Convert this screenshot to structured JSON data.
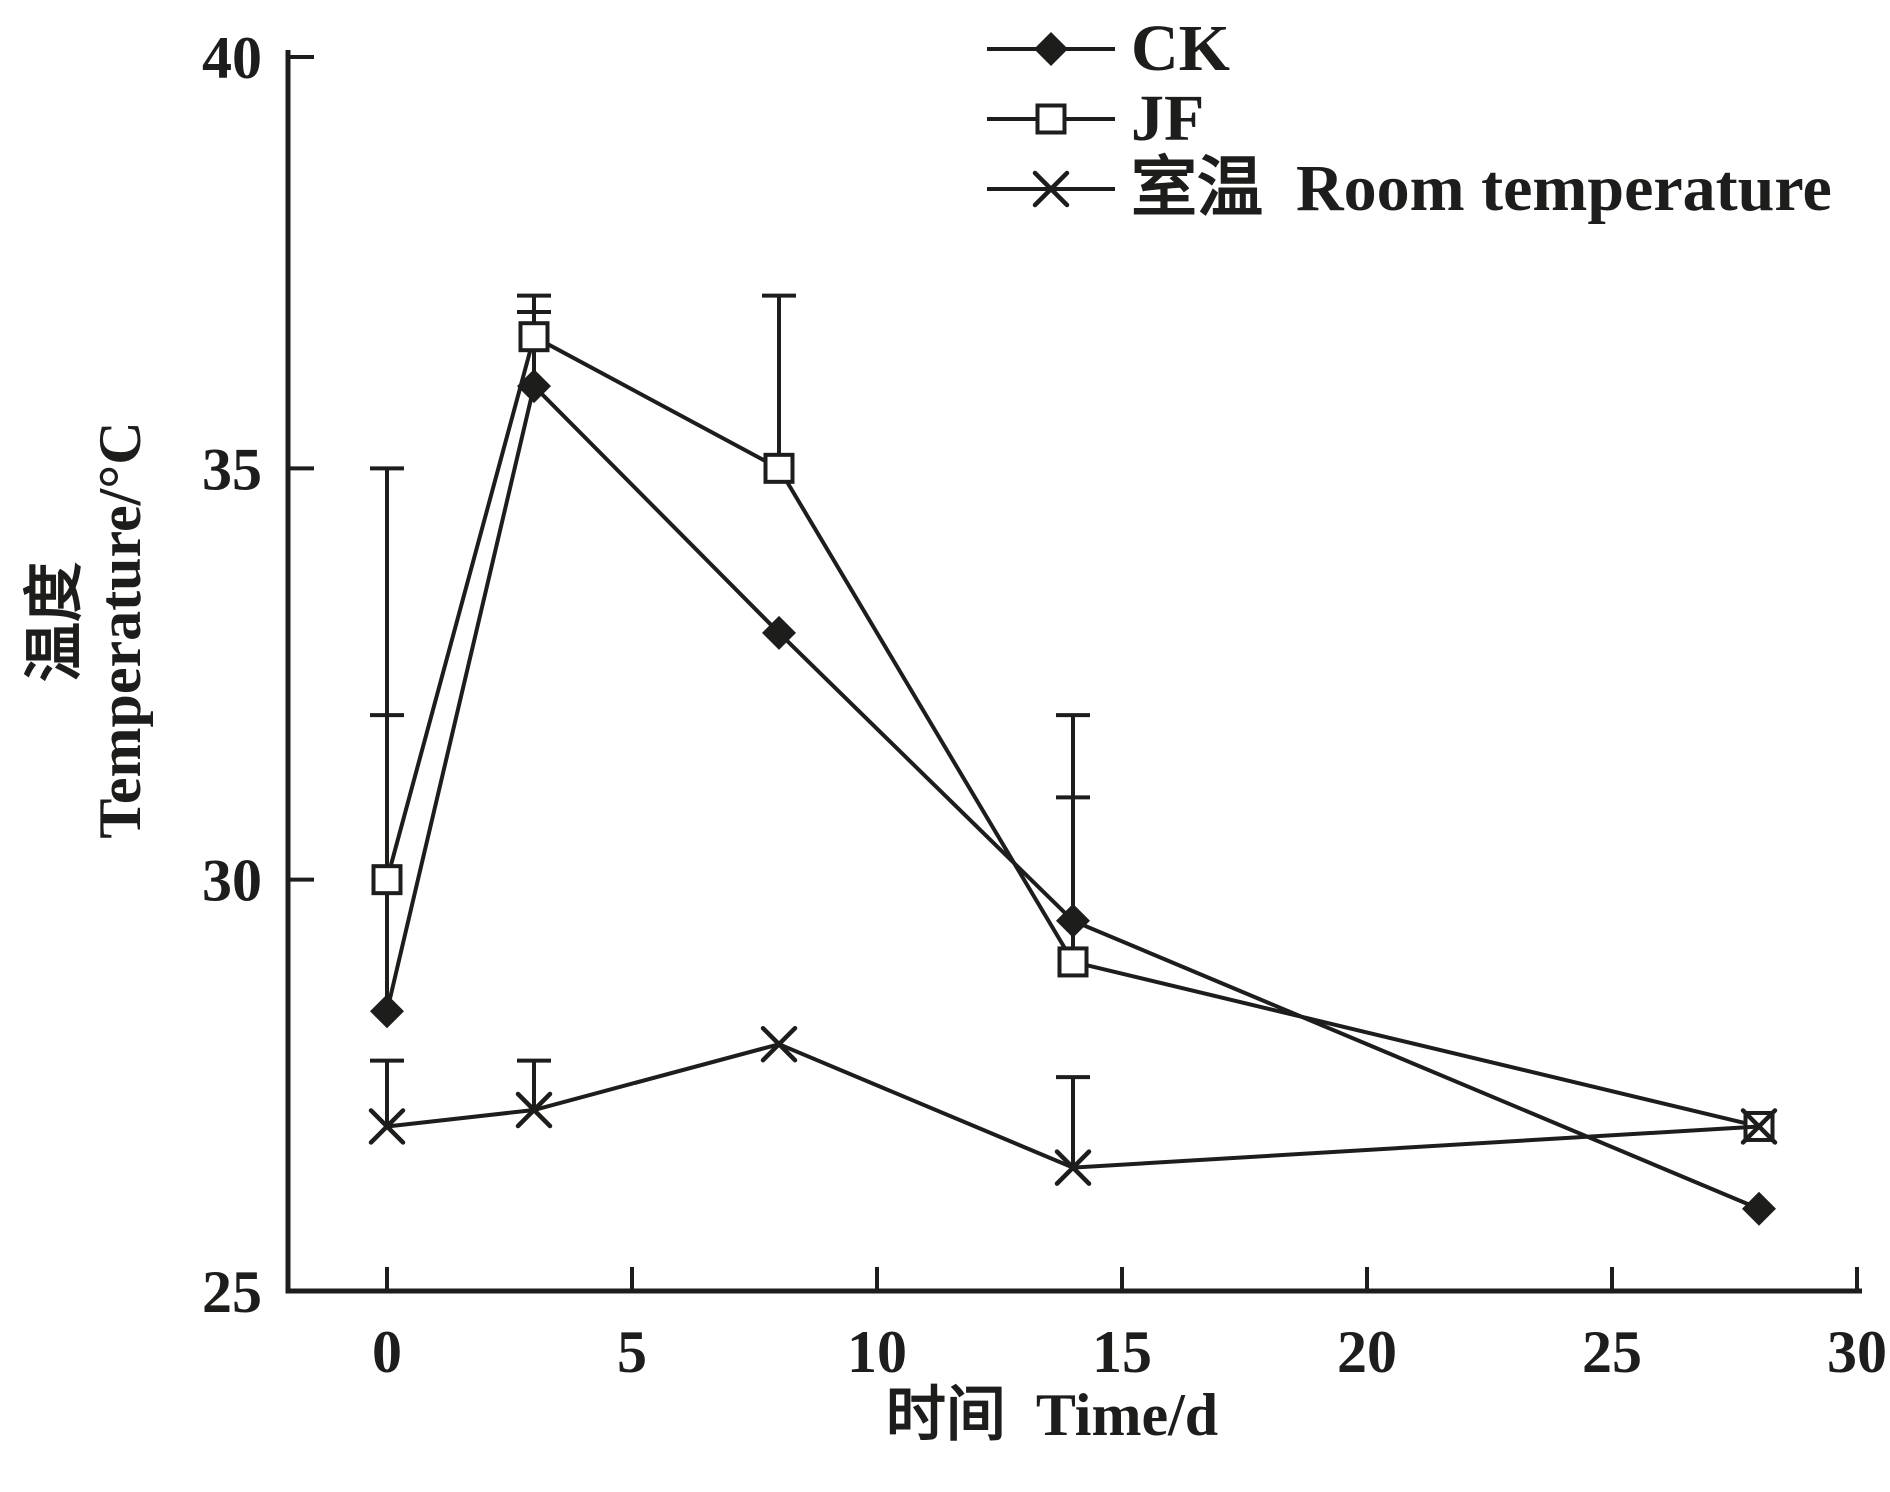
{
  "chart_data": {
    "type": "line",
    "title": "",
    "xlabel": "时间  Time/d",
    "ylabel_zh": "温度",
    "ylabel_en": "Temperature/°C",
    "x": [
      0,
      3,
      8,
      14,
      28
    ],
    "xlim": [
      0,
      30
    ],
    "ylim": [
      25,
      40
    ],
    "x_ticks": [
      0,
      5,
      10,
      15,
      20,
      25,
      30
    ],
    "y_ticks": [
      25,
      30,
      35,
      40
    ],
    "grid": false,
    "legend_position": "top-right",
    "error_bars": "upper-only",
    "axis_color": "#1d1d1b",
    "series": [
      {
        "id": "ck",
        "name": "CK",
        "marker": "filled-diamond",
        "values": [
          28.4,
          36.0,
          33.0,
          29.5,
          26.0
        ],
        "err_up": [
          3.6,
          0.9,
          0,
          2.5,
          0
        ]
      },
      {
        "id": "jf",
        "name": "JF",
        "marker": "open-square",
        "values": [
          30.0,
          36.6,
          35.0,
          29.0,
          27.0
        ],
        "err_up": [
          5.0,
          0.5,
          2.1,
          2.0,
          0
        ]
      },
      {
        "id": "room",
        "name": "室温  Room temperature",
        "marker": "x-cross",
        "values": [
          27.0,
          27.2,
          28.0,
          26.5,
          27.0
        ],
        "err_up": [
          0.8,
          0.6,
          0,
          1.1,
          0
        ]
      }
    ]
  }
}
